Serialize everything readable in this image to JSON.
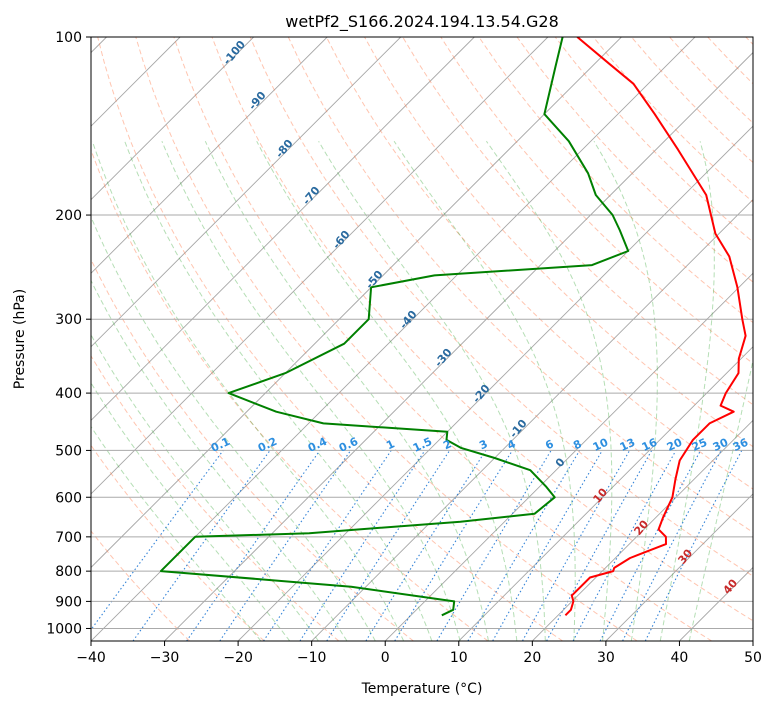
{
  "chart_data": {
    "type": "line",
    "title": "wetPf2_S166.2024.194.13.54.G28",
    "xlabel": "Temperature (°C)",
    "ylabel": "Pressure (hPa)",
    "xlim": [
      -40,
      50
    ],
    "ylim": [
      1050,
      100
    ],
    "y_scale": "log",
    "grid": true,
    "x_ticks": [
      -40,
      -30,
      -20,
      -10,
      0,
      10,
      20,
      30,
      40,
      50
    ],
    "x_tick_labels": [
      "−40",
      "−30",
      "−20",
      "−10",
      "0",
      "10",
      "20",
      "30",
      "40",
      "50"
    ],
    "y_ticks": [
      100,
      200,
      300,
      400,
      500,
      600,
      700,
      800,
      900,
      1000
    ],
    "y_tick_labels": [
      "100",
      "200",
      "300",
      "400",
      "500",
      "600",
      "700",
      "800",
      "900",
      "1000"
    ],
    "colors": {
      "temperature": "#ff0000",
      "dewpoint": "#008000",
      "dry_adiabat": "#ff7f50",
      "moist_adiabat": "#2ca02c",
      "mixing_ratio": "#1f77d4",
      "isotherm": "#888888",
      "grid": "#aaaaaa"
    },
    "series": [
      {
        "kind": "temperature",
        "points": [
          [
            21.0,
            950
          ],
          [
            21.0,
            930
          ],
          [
            20.2,
            900
          ],
          [
            19.2,
            880
          ],
          [
            19.2,
            820
          ],
          [
            21.5,
            800
          ],
          [
            21.2,
            790
          ],
          [
            22.0,
            760
          ],
          [
            25.0,
            720
          ],
          [
            24.0,
            700
          ],
          [
            22.0,
            680
          ],
          [
            21.0,
            650
          ],
          [
            19.5,
            600
          ],
          [
            17.5,
            560
          ],
          [
            15.5,
            520
          ],
          [
            14.5,
            480
          ],
          [
            14.5,
            450
          ],
          [
            16.2,
            430
          ],
          [
            13.6,
            420
          ],
          [
            12.6,
            400
          ],
          [
            11.6,
            370
          ],
          [
            9.7,
            350
          ],
          [
            7.5,
            320
          ],
          [
            4.8,
            300
          ],
          [
            -0.2,
            265
          ],
          [
            -5.5,
            235
          ],
          [
            -10.5,
            215
          ],
          [
            -17,
            185
          ],
          [
            -27,
            155
          ],
          [
            -35,
            135
          ],
          [
            -42,
            120
          ],
          [
            -48,
            111
          ],
          [
            -56,
            100
          ]
        ]
      },
      {
        "kind": "dewpoint",
        "points": [
          [
            4.2,
            950
          ],
          [
            5.0,
            930
          ],
          [
            4.0,
            900
          ],
          [
            -12,
            850
          ],
          [
            -40,
            800
          ],
          [
            -40,
            700
          ],
          [
            -25,
            690
          ],
          [
            -6,
            660
          ],
          [
            3.0,
            640
          ],
          [
            3.5,
            600
          ],
          [
            0.8,
            575
          ],
          [
            -3.5,
            540
          ],
          [
            -10,
            515
          ],
          [
            -16,
            495
          ],
          [
            -19,
            480
          ],
          [
            -20,
            465
          ],
          [
            -38,
            450
          ],
          [
            -46,
            430
          ],
          [
            -55,
            400
          ],
          [
            -50,
            370
          ],
          [
            -46,
            330
          ],
          [
            -46,
            300
          ],
          [
            -50,
            265
          ],
          [
            -43,
            253
          ],
          [
            -23,
            243
          ],
          [
            -20,
            230
          ],
          [
            -24,
            212
          ],
          [
            -27,
            200
          ],
          [
            -32,
            185
          ],
          [
            -36,
            170
          ],
          [
            -43,
            150
          ],
          [
            -50,
            135
          ],
          [
            -55,
            112
          ],
          [
            -58,
            100
          ]
        ]
      }
    ],
    "dry_adiabat_labels": [
      "-100",
      "-90",
      "-80",
      "-70",
      "-60",
      "-50",
      "-40",
      "-30",
      "-20",
      "-10",
      "0",
      "10",
      "20",
      "30",
      "40"
    ],
    "mixing_ratio_labels": [
      "0.1",
      "0.2",
      "0.4",
      "0.6",
      "1",
      "1.5",
      "2",
      "3",
      "4",
      "6",
      "8",
      "10",
      "13",
      "16",
      "20",
      "25",
      "30",
      "36"
    ]
  }
}
